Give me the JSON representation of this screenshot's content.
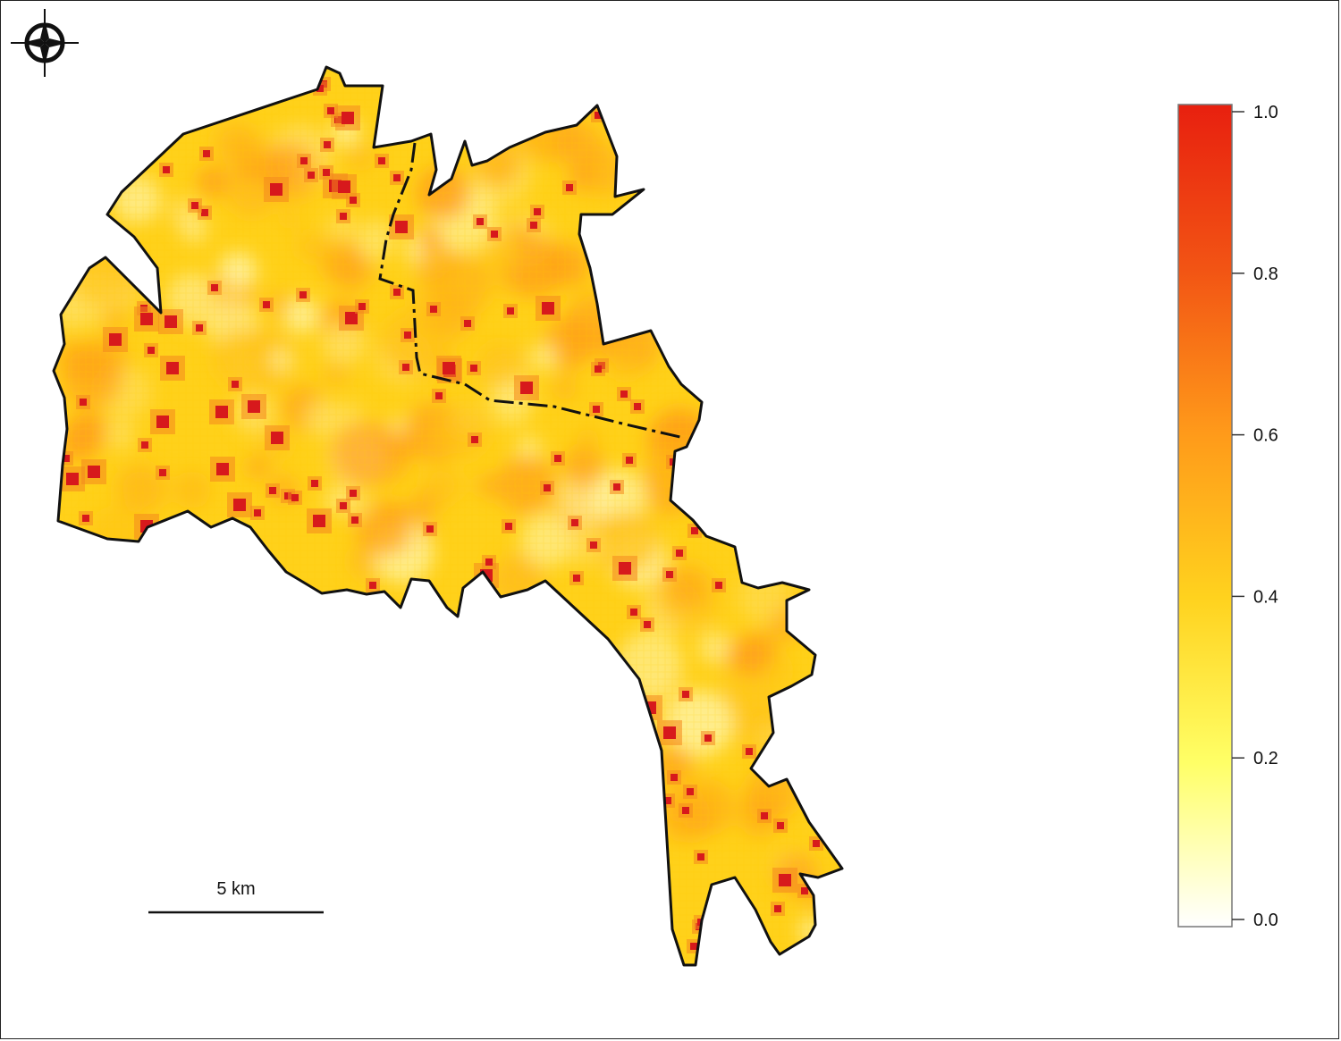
{
  "map": {
    "fill_low": "#fff9c4",
    "fill_mid": "#ffd11a",
    "fill_high": "#d7191c",
    "outline_color": "#111111",
    "hotspot_count": 120
  },
  "compass": {
    "icon": "compass-rose-icon"
  },
  "scale_bar": {
    "label": "5 km"
  },
  "legend": {
    "min": 0.0,
    "max": 1.0,
    "colors": [
      "#ffffff",
      "#ffff66",
      "#ffd21e",
      "#ff9a1a",
      "#f25414",
      "#e8200f"
    ],
    "ticks": [
      "1.0",
      "0.8",
      "0.6",
      "0.4",
      "0.2",
      "0.0"
    ]
  }
}
